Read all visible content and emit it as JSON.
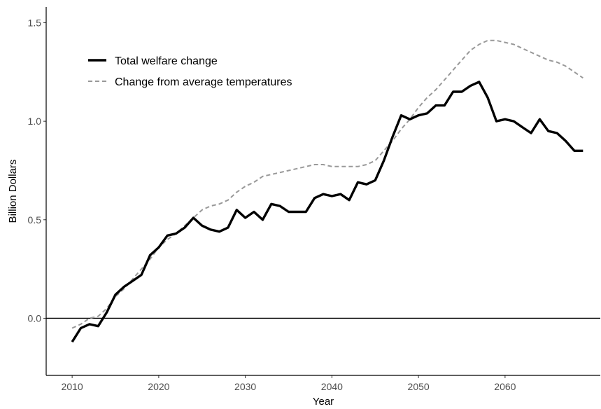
{
  "chart_data": {
    "type": "line",
    "xlabel": "Year",
    "ylabel": "Billion Dollars",
    "xlim": [
      2007,
      2071
    ],
    "ylim": [
      -0.29,
      1.58
    ],
    "x_ticks": [
      2010,
      2020,
      2030,
      2040,
      2050,
      2060
    ],
    "y_ticks": [
      0.0,
      0.5,
      1.0,
      1.5
    ],
    "y_tick_labels": [
      "0.0",
      "0.5",
      "1.0",
      "1.5"
    ],
    "reference_line_y": 0,
    "grid": false,
    "legend_position": "top-left",
    "x": [
      2010,
      2011,
      2012,
      2013,
      2014,
      2015,
      2016,
      2017,
      2018,
      2019,
      2020,
      2021,
      2022,
      2023,
      2024,
      2025,
      2026,
      2027,
      2028,
      2029,
      2030,
      2031,
      2032,
      2033,
      2034,
      2035,
      2036,
      2037,
      2038,
      2039,
      2040,
      2041,
      2042,
      2043,
      2044,
      2045,
      2046,
      2047,
      2048,
      2049,
      2050,
      2051,
      2052,
      2053,
      2054,
      2055,
      2056,
      2057,
      2058,
      2059,
      2060,
      2061,
      2062,
      2063,
      2064,
      2065,
      2066,
      2067,
      2068,
      2069
    ],
    "series": [
      {
        "name": "Total welfare change",
        "color": "#000000",
        "style": "solid",
        "values": [
          -0.12,
          -0.05,
          -0.03,
          -0.04,
          0.03,
          0.12,
          0.16,
          0.19,
          0.22,
          0.32,
          0.36,
          0.42,
          0.43,
          0.46,
          0.51,
          0.47,
          0.45,
          0.44,
          0.46,
          0.55,
          0.51,
          0.54,
          0.5,
          0.58,
          0.57,
          0.54,
          0.54,
          0.54,
          0.61,
          0.63,
          0.62,
          0.63,
          0.6,
          0.69,
          0.68,
          0.7,
          0.8,
          0.92,
          1.03,
          1.01,
          1.03,
          1.04,
          1.08,
          1.08,
          1.15,
          1.15,
          1.18,
          1.2,
          1.12,
          1.0,
          1.01,
          1.0,
          0.97,
          0.94,
          1.01,
          0.95,
          0.94,
          0.9,
          0.85,
          0.85
        ]
      },
      {
        "name": "Change from average temperatures",
        "color": "#999999",
        "style": "dashed",
        "values": [
          -0.05,
          -0.03,
          0.0,
          0.01,
          0.05,
          0.11,
          0.15,
          0.2,
          0.25,
          0.3,
          0.36,
          0.4,
          0.43,
          0.47,
          0.51,
          0.55,
          0.57,
          0.58,
          0.6,
          0.64,
          0.67,
          0.69,
          0.72,
          0.73,
          0.74,
          0.75,
          0.76,
          0.77,
          0.78,
          0.78,
          0.77,
          0.77,
          0.77,
          0.77,
          0.78,
          0.8,
          0.85,
          0.9,
          0.96,
          1.01,
          1.07,
          1.12,
          1.16,
          1.21,
          1.26,
          1.31,
          1.36,
          1.39,
          1.41,
          1.41,
          1.4,
          1.39,
          1.37,
          1.35,
          1.33,
          1.31,
          1.3,
          1.28,
          1.25,
          1.22
        ]
      }
    ]
  }
}
